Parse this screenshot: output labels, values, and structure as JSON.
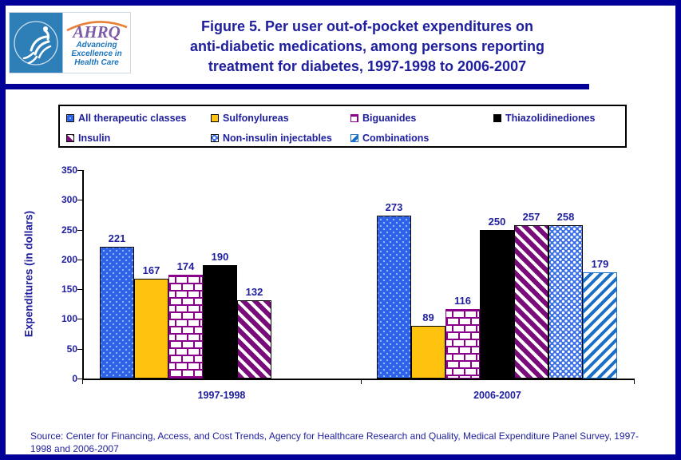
{
  "header": {
    "logo": {
      "org": "AHRQ",
      "tagline_lines": [
        "Advancing",
        "Excellence in",
        "Health Care"
      ]
    },
    "title_lines": [
      "Figure 5. Per user out-of-pocket expenditures on",
      "anti-diabetic medications, among persons reporting",
      "treatment for diabetes, 1997-1998 to 2006-2007"
    ]
  },
  "chart_data": {
    "type": "bar",
    "title": "Figure 5. Per user out-of-pocket expenditures on anti-diabetic medications, among persons reporting treatment for diabetes, 1997-1998 to 2006-2007",
    "xlabel": "",
    "ylabel": "Expenditures (in dollars)",
    "ylim": [
      0,
      350
    ],
    "yticks": [
      0,
      50,
      100,
      150,
      200,
      250,
      300,
      350
    ],
    "grid": false,
    "legend_position": "top",
    "categories": [
      "1997-1998",
      "2006-2007"
    ],
    "series": [
      {
        "name": "All therapeutic classes",
        "values": [
          221,
          273
        ],
        "color": "#2D62E8",
        "border_color": "#000000",
        "pattern": "dots"
      },
      {
        "name": "Sulfonylureas",
        "values": [
          167,
          89
        ],
        "color": "#FFC20E",
        "border_color": "#000000",
        "pattern": "solid"
      },
      {
        "name": "Biguanides",
        "values": [
          174,
          116
        ],
        "color": "#8B008B",
        "border_color": "#8B008B",
        "pattern": "brick"
      },
      {
        "name": "Thiazolidinediones",
        "values": [
          190,
          250
        ],
        "color": "#000000",
        "border_color": "#000000",
        "pattern": "solid"
      },
      {
        "name": "Insulin",
        "values": [
          132,
          257
        ],
        "color": "#7A0B7A",
        "border_color": "#000000",
        "pattern": "diagonal-down"
      },
      {
        "name": "Non-insulin injectables",
        "values": [
          null,
          258
        ],
        "color": "#3A6FE8",
        "border_color": "#000000",
        "pattern": "squares"
      },
      {
        "name": "Combinations",
        "values": [
          null,
          179
        ],
        "color": "#1A6FC8",
        "border_color": "#1A6FC8",
        "pattern": "diagonal-up"
      }
    ]
  },
  "source": "Source: Center for Financing, Access, and Cost Trends, Agency for Healthcare Research and Quality, Medical Expenditure Panel Survey, 1997-1998 and 2006-2007",
  "colors": {
    "navy_text": "#1E1E9E",
    "frame": "#000099",
    "seal_blue": "#2E7FB8",
    "ahrq_purple": "#7D5BA6",
    "ahrq_arc_orange": "#E87F35",
    "tagline_blue": "#1B75BC"
  }
}
